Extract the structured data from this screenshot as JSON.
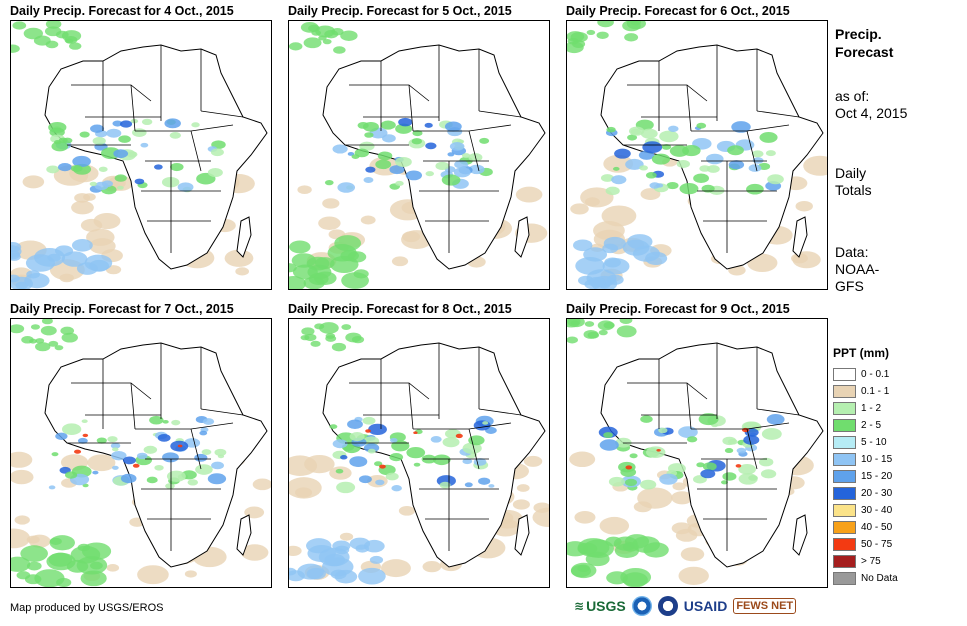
{
  "panels": [
    {
      "title": "Daily Precip. Forecast for 4 Oct., 2015"
    },
    {
      "title": "Daily Precip. Forecast for 5 Oct., 2015"
    },
    {
      "title": "Daily Precip. Forecast for 6 Oct., 2015"
    },
    {
      "title": "Daily Precip. Forecast for 7 Oct., 2015"
    },
    {
      "title": "Daily Precip. Forecast for 8 Oct., 2015"
    },
    {
      "title": "Daily Precip. Forecast for 9 Oct., 2015"
    }
  ],
  "side": {
    "title_line1": "Precip.",
    "title_line2": "Forecast",
    "asof_line1": "as of:",
    "asof_line2": "Oct 4, 2015",
    "totals_line1": "Daily",
    "totals_line2": "Totals",
    "data_line1": "Data:",
    "data_line2": "NOAA-",
    "data_line3": "GFS"
  },
  "legend": {
    "title": "PPT (mm)",
    "items": [
      {
        "label": "0 - 0.1",
        "color": "#ffffff"
      },
      {
        "label": "0.1 - 1",
        "color": "#e8d3b4"
      },
      {
        "label": "1 - 2",
        "color": "#b5efb0"
      },
      {
        "label": "2 - 5",
        "color": "#70dd6e"
      },
      {
        "label": "5 - 10",
        "color": "#b6ecf5"
      },
      {
        "label": "10 - 15",
        "color": "#8fc4f4"
      },
      {
        "label": "15 - 20",
        "color": "#5fa2ec"
      },
      {
        "label": "20 - 30",
        "color": "#2464db"
      },
      {
        "label": "30 - 40",
        "color": "#fbe389"
      },
      {
        "label": "40 - 50",
        "color": "#f7a11a"
      },
      {
        "label": "50 - 75",
        "color": "#f33a12"
      },
      {
        "label": "> 75",
        "color": "#a51e1e"
      },
      {
        "label": "No Data",
        "color": "#999999"
      }
    ]
  },
  "credit": "Map produced by USGS/EROS",
  "logos": {
    "usgs": "USGS",
    "usaid": "USAID",
    "fews": "FEWS NET"
  }
}
